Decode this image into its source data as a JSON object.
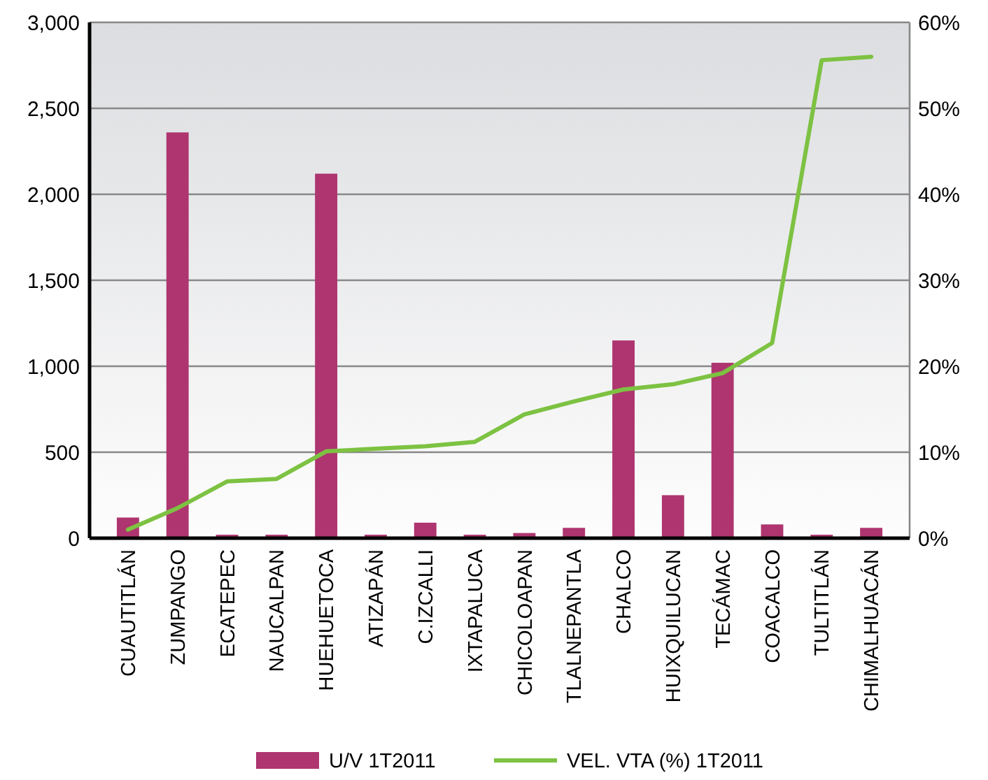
{
  "chart_data": {
    "type": "bar",
    "categories": [
      "CUAUTITLÁN",
      "ZUMPANGO",
      "ECATEPEC",
      "NAUCALPAN",
      "HUEHUETOCA",
      "ATIZAPÁN",
      "C.IZCALLI",
      "IXTAPALUCA",
      "CHICOLOAPAN",
      "TLALNEPANTLA",
      "CHALCO",
      "HUIXQUILUCAN",
      "TECÁMAC",
      "COACALCO",
      "TULTITLÁN",
      "CHIMALHUACÁN"
    ],
    "series": [
      {
        "name": "U/V 1T2011",
        "color": "#ae356f",
        "values": [
          120,
          2360,
          20,
          20,
          2120,
          20,
          90,
          20,
          30,
          60,
          1150,
          250,
          1020,
          80,
          20,
          60
        ]
      },
      {
        "name": "VEL. VTA (%) 1T2011",
        "type": "line",
        "axis": "y2",
        "color": "#7dc242",
        "values": [
          1,
          3.5,
          6.6,
          6.9,
          10.1,
          10.4,
          10.7,
          11.2,
          14.4,
          15.9,
          17.3,
          17.9,
          19.2,
          22.7,
          55.6,
          56
        ]
      }
    ],
    "ylim": [
      0,
      3000
    ],
    "yticks": [
      {
        "value": 0,
        "label": "0"
      },
      {
        "value": 500,
        "label": "500"
      },
      {
        "value": 1000,
        "label": "1,000"
      },
      {
        "value": 1500,
        "label": "1,500"
      },
      {
        "value": 2000,
        "label": "2,000"
      },
      {
        "value": 2500,
        "label": "2,500"
      },
      {
        "value": 3000,
        "label": "3,000"
      }
    ],
    "y2lim": [
      0,
      60
    ],
    "y2ticks": [
      {
        "value": 0,
        "label": "0%"
      },
      {
        "value": 10,
        "label": "10%"
      },
      {
        "value": 20,
        "label": "20%"
      },
      {
        "value": 30,
        "label": "30%"
      },
      {
        "value": 40,
        "label": "40%"
      },
      {
        "value": 50,
        "label": "50%"
      },
      {
        "value": 60,
        "label": "60%"
      }
    ],
    "grid": "y",
    "legend": "bottom",
    "marker": "none",
    "line_style": "solid"
  }
}
